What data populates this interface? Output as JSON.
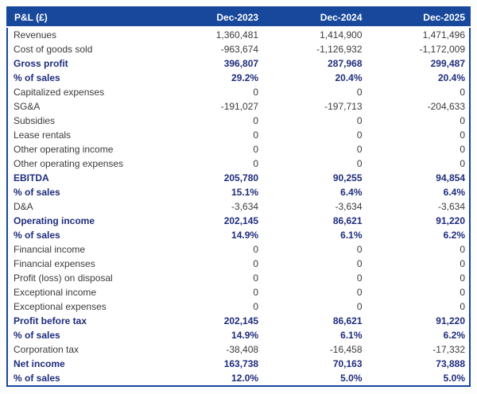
{
  "chart_data": {
    "type": "table",
    "title": "P&L (£)",
    "columns": [
      "Dec-2023",
      "Dec-2024",
      "Dec-2025"
    ],
    "rows": [
      {
        "label": "Revenues",
        "values": [
          "1,360,481",
          "1,414,900",
          "1,471,496"
        ],
        "emphasis": false
      },
      {
        "label": "Cost of goods sold",
        "values": [
          "-963,674",
          "-1,126,932",
          "-1,172,009"
        ],
        "emphasis": false
      },
      {
        "label": "Gross profit",
        "values": [
          "396,807",
          "287,968",
          "299,487"
        ],
        "emphasis": true
      },
      {
        "label": "% of sales",
        "values": [
          "29.2%",
          "20.4%",
          "20.4%"
        ],
        "emphasis": true
      },
      {
        "label": "Capitalized expenses",
        "values": [
          "0",
          "0",
          "0"
        ],
        "emphasis": false
      },
      {
        "label": "SG&A",
        "values": [
          "-191,027",
          "-197,713",
          "-204,633"
        ],
        "emphasis": false
      },
      {
        "label": "Subsidies",
        "values": [
          "0",
          "0",
          "0"
        ],
        "emphasis": false
      },
      {
        "label": "Lease rentals",
        "values": [
          "0",
          "0",
          "0"
        ],
        "emphasis": false
      },
      {
        "label": "Other operating income",
        "values": [
          "0",
          "0",
          "0"
        ],
        "emphasis": false
      },
      {
        "label": "Other operating expenses",
        "values": [
          "0",
          "0",
          "0"
        ],
        "emphasis": false
      },
      {
        "label": "EBITDA",
        "values": [
          "205,780",
          "90,255",
          "94,854"
        ],
        "emphasis": true
      },
      {
        "label": "% of sales",
        "values": [
          "15.1%",
          "6.4%",
          "6.4%"
        ],
        "emphasis": true
      },
      {
        "label": "D&A",
        "values": [
          "-3,634",
          "-3,634",
          "-3,634"
        ],
        "emphasis": false
      },
      {
        "label": "Operating income",
        "values": [
          "202,145",
          "86,621",
          "91,220"
        ],
        "emphasis": true
      },
      {
        "label": "% of sales",
        "values": [
          "14.9%",
          "6.1%",
          "6.2%"
        ],
        "emphasis": true
      },
      {
        "label": "Financial income",
        "values": [
          "0",
          "0",
          "0"
        ],
        "emphasis": false
      },
      {
        "label": "Financial expenses",
        "values": [
          "0",
          "0",
          "0"
        ],
        "emphasis": false
      },
      {
        "label": "Profit (loss) on disposal",
        "values": [
          "0",
          "0",
          "0"
        ],
        "emphasis": false
      },
      {
        "label": "Exceptional income",
        "values": [
          "0",
          "0",
          "0"
        ],
        "emphasis": false
      },
      {
        "label": "Exceptional expenses",
        "values": [
          "0",
          "0",
          "0"
        ],
        "emphasis": false
      },
      {
        "label": "Profit before tax",
        "values": [
          "202,145",
          "86,621",
          "91,220"
        ],
        "emphasis": true
      },
      {
        "label": "% of sales",
        "values": [
          "14.9%",
          "6.1%",
          "6.2%"
        ],
        "emphasis": true
      },
      {
        "label": "Corporation tax",
        "values": [
          "-38,408",
          "-16,458",
          "-17,332"
        ],
        "emphasis": false
      },
      {
        "label": "Net income",
        "values": [
          "163,738",
          "70,163",
          "73,888"
        ],
        "emphasis": true
      },
      {
        "label": "% of sales",
        "values": [
          "12.0%",
          "5.0%",
          "5.0%"
        ],
        "emphasis": true
      }
    ]
  },
  "colors": {
    "header_bg": "#17489B",
    "border": "#17489B",
    "emphasis_text": "#1F2C7C",
    "regular_text": "#3B3B3B",
    "header_text": "#FFFFFF"
  }
}
